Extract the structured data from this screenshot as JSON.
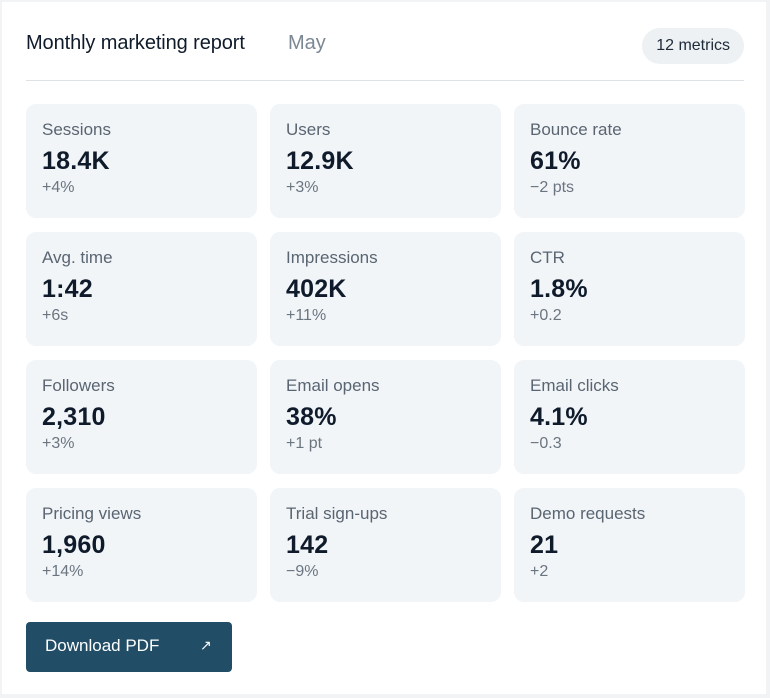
{
  "header": {
    "title": "Monthly marketing report",
    "month": "May",
    "badge": "12 metrics"
  },
  "metrics": [
    {
      "label": "Sessions",
      "value": "18.4K",
      "delta": "+4%"
    },
    {
      "label": "Users",
      "value": "12.9K",
      "delta": "+3%"
    },
    {
      "label": "Bounce rate",
      "value": "61%",
      "delta": "−2 pts"
    },
    {
      "label": "Avg. time",
      "value": "1:42",
      "delta": "+6s"
    },
    {
      "label": "Impressions",
      "value": "402K",
      "delta": "+11%"
    },
    {
      "label": "CTR",
      "value": "1.8%",
      "delta": "+0.2"
    },
    {
      "label": "Followers",
      "value": "2,310",
      "delta": "+3%"
    },
    {
      "label": "Email opens",
      "value": "38%",
      "delta": "+1 pt"
    },
    {
      "label": "Email clicks",
      "value": "4.1%",
      "delta": "−0.3"
    },
    {
      "label": "Pricing views",
      "value": "1,960",
      "delta": "+14%"
    },
    {
      "label": "Trial sign-ups",
      "value": "142",
      "delta": "−9%"
    },
    {
      "label": "Demo requests",
      "value": "21",
      "delta": "+2"
    }
  ],
  "actions": {
    "download_label": "Download PDF",
    "download_icon": "↗"
  }
}
